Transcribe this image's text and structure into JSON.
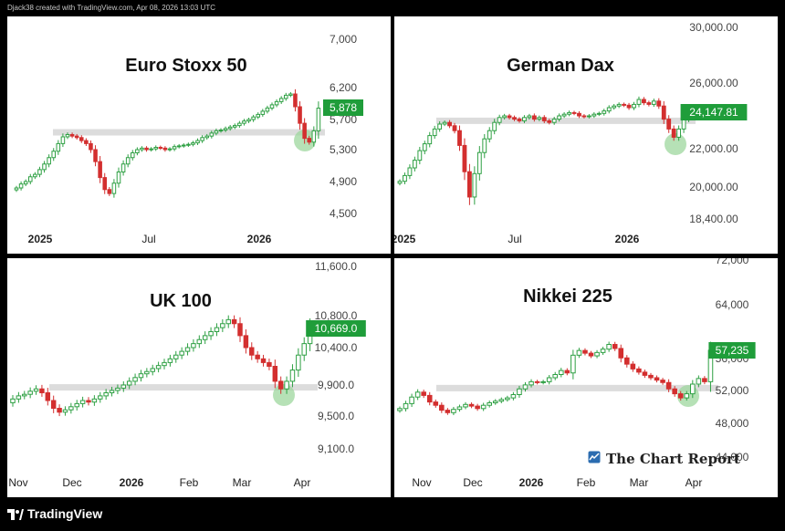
{
  "header": {
    "credit": "Djack38 created with TradingView.com, Apr 08, 2026 13:03 UTC"
  },
  "footer": {
    "brand": "TradingView"
  },
  "watermark": {
    "text": "The Chart Report"
  },
  "colors": {
    "up": "#2ea043",
    "down": "#d32f2f",
    "support_band": "#dcdcdc",
    "highlight_circle": "#9ed79e",
    "price_label_bg": "#1f9d3a"
  },
  "chart_data": [
    {
      "id": "stoxx",
      "type": "candlestick",
      "title": "Euro Stoxx 50",
      "x_ticks": [
        "2025",
        "Jul",
        "2026"
      ],
      "y_ticks": [
        "7,000",
        "6,200",
        "5,700",
        "5,300",
        "4,900",
        "4,500"
      ],
      "last_price_label": "5,878",
      "ylim": [
        4300,
        7200
      ],
      "support_level": 5530,
      "closes": [
        4820,
        4870,
        4900,
        4960,
        4990,
        5050,
        5120,
        5200,
        5280,
        5380,
        5470,
        5500,
        5480,
        5460,
        5420,
        5380,
        5300,
        5150,
        4950,
        4800,
        4750,
        4880,
        5020,
        5120,
        5200,
        5260,
        5300,
        5320,
        5300,
        5310,
        5330,
        5320,
        5300,
        5310,
        5340,
        5350,
        5360,
        5370,
        5390,
        5420,
        5460,
        5480,
        5520,
        5550,
        5560,
        5580,
        5600,
        5620,
        5650,
        5680,
        5700,
        5740,
        5780,
        5830,
        5880,
        5930,
        5980,
        6030,
        6080,
        6100,
        5900,
        5650,
        5450,
        5400,
        5550,
        5878
      ]
    },
    {
      "id": "dax",
      "type": "candlestick",
      "title": "German Dax",
      "x_ticks": [
        "2025",
        "Jul",
        "2026"
      ],
      "y_ticks": [
        "30,000.00",
        "26,000.00",
        "22,000.00",
        "20,000.00",
        "18,400.00"
      ],
      "last_price_label": "24,147.81",
      "ylim": [
        17500,
        30500
      ],
      "support_level": 23700,
      "closes": [
        20300,
        20600,
        21000,
        21400,
        21900,
        22300,
        22800,
        23200,
        23500,
        23600,
        23400,
        23100,
        22200,
        20800,
        19500,
        20700,
        21800,
        22600,
        23100,
        23600,
        23900,
        24000,
        23900,
        23800,
        23700,
        23900,
        24000,
        23800,
        23900,
        23700,
        23600,
        23800,
        24000,
        24100,
        24200,
        24150,
        24000,
        23950,
        24000,
        24100,
        24150,
        24300,
        24500,
        24600,
        24700,
        24650,
        24500,
        24700,
        25000,
        24800,
        24700,
        24900,
        24600,
        23800,
        23200,
        22700,
        23200,
        23800,
        24147.81
      ]
    },
    {
      "id": "uk",
      "type": "candlestick",
      "title": "UK 100",
      "x_ticks": [
        "Nov",
        "Dec",
        "2026",
        "Feb",
        "Mar",
        "Apr"
      ],
      "y_ticks": [
        "11,600.0",
        "10,800.0",
        "10,400.0",
        "9,900.0",
        "9,500.0",
        "9,100.0"
      ],
      "last_price_label": "10,669.0",
      "ylim": [
        8800,
        11900
      ],
      "support_level": 9870,
      "closes": [
        9720,
        9760,
        9780,
        9820,
        9850,
        9800,
        9700,
        9600,
        9550,
        9580,
        9620,
        9660,
        9700,
        9680,
        9720,
        9760,
        9800,
        9830,
        9860,
        9900,
        9950,
        10000,
        10050,
        10080,
        10120,
        10160,
        10200,
        10250,
        10300,
        10350,
        10400,
        10450,
        10500,
        10550,
        10600,
        10650,
        10700,
        10750,
        10700,
        10550,
        10400,
        10300,
        10250,
        10200,
        10150,
        9950,
        9850,
        9950,
        10100,
        10300,
        10450,
        10669
      ]
    },
    {
      "id": "nikkei",
      "type": "candlestick",
      "title": "Nikkei 225",
      "x_ticks": [
        "Nov",
        "Dec",
        "2026",
        "Feb",
        "Mar",
        "Apr"
      ],
      "y_ticks": [
        "72,000",
        "64,000",
        "56,000",
        "52,000",
        "48,000",
        "44,000"
      ],
      "last_price_label": "57,235",
      "ylim": [
        42500,
        73000
      ],
      "support_level": 52300,
      "closes": [
        49800,
        50400,
        51200,
        51800,
        51400,
        50600,
        50200,
        49600,
        49300,
        49700,
        50000,
        50300,
        50100,
        49800,
        50200,
        50500,
        50700,
        50900,
        51100,
        51500,
        52200,
        52700,
        53100,
        53000,
        53100,
        53600,
        54000,
        54500,
        54200,
        56500,
        57200,
        56800,
        56400,
        56900,
        57400,
        58100,
        57500,
        56100,
        55300,
        54700,
        54300,
        53900,
        53600,
        53300,
        53000,
        52200,
        51600,
        51100,
        51600,
        52800,
        53500,
        53100,
        57235
      ]
    }
  ]
}
